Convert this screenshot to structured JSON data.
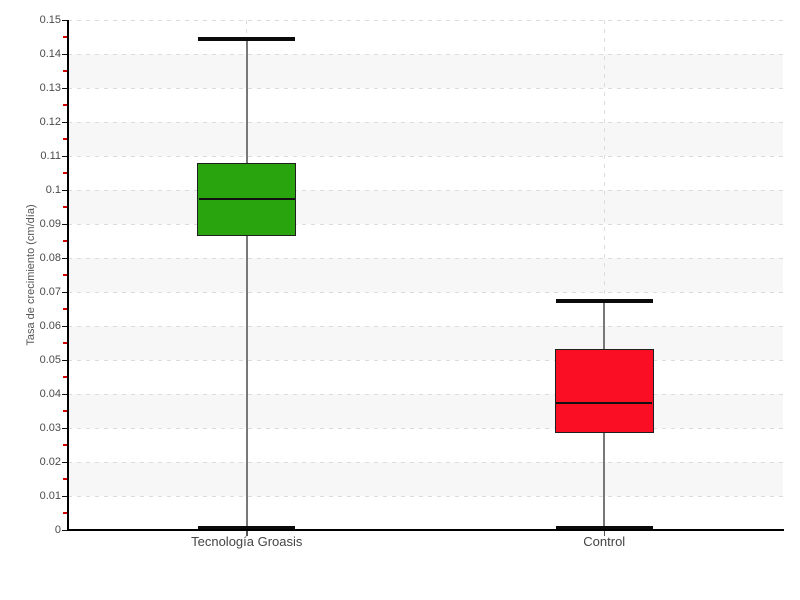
{
  "chart_data": {
    "type": "box",
    "title": "",
    "xlabel": "",
    "ylabel": "Tasa de crecimiento (cm/día)",
    "ylim": [
      0,
      0.15
    ],
    "y_major_step": 0.01,
    "y_minor_step": 0.005,
    "y_tick_labels": [
      "0",
      "0.01",
      "0.02",
      "0.03",
      "0.04",
      "0.05",
      "0.06",
      "0.07",
      "0.08",
      "0.09",
      "0.1",
      "0.11",
      "0.12",
      "0.13",
      "0.14",
      "0.15"
    ],
    "grid": true,
    "legend": false,
    "minor_tick_color": "#cc0000",
    "categories": [
      "Tecnología Groasis",
      "Control"
    ],
    "series": [
      {
        "name": "Tecnología Groasis",
        "color": "#29a30e",
        "low": 0.0005,
        "q1": 0.0865,
        "median": 0.0975,
        "q3": 0.1078,
        "high": 0.1443
      },
      {
        "name": "Control",
        "color": "#f90e23",
        "low": 0.0005,
        "q1": 0.0285,
        "median": 0.0373,
        "q3": 0.0532,
        "high": 0.0674
      }
    ]
  }
}
